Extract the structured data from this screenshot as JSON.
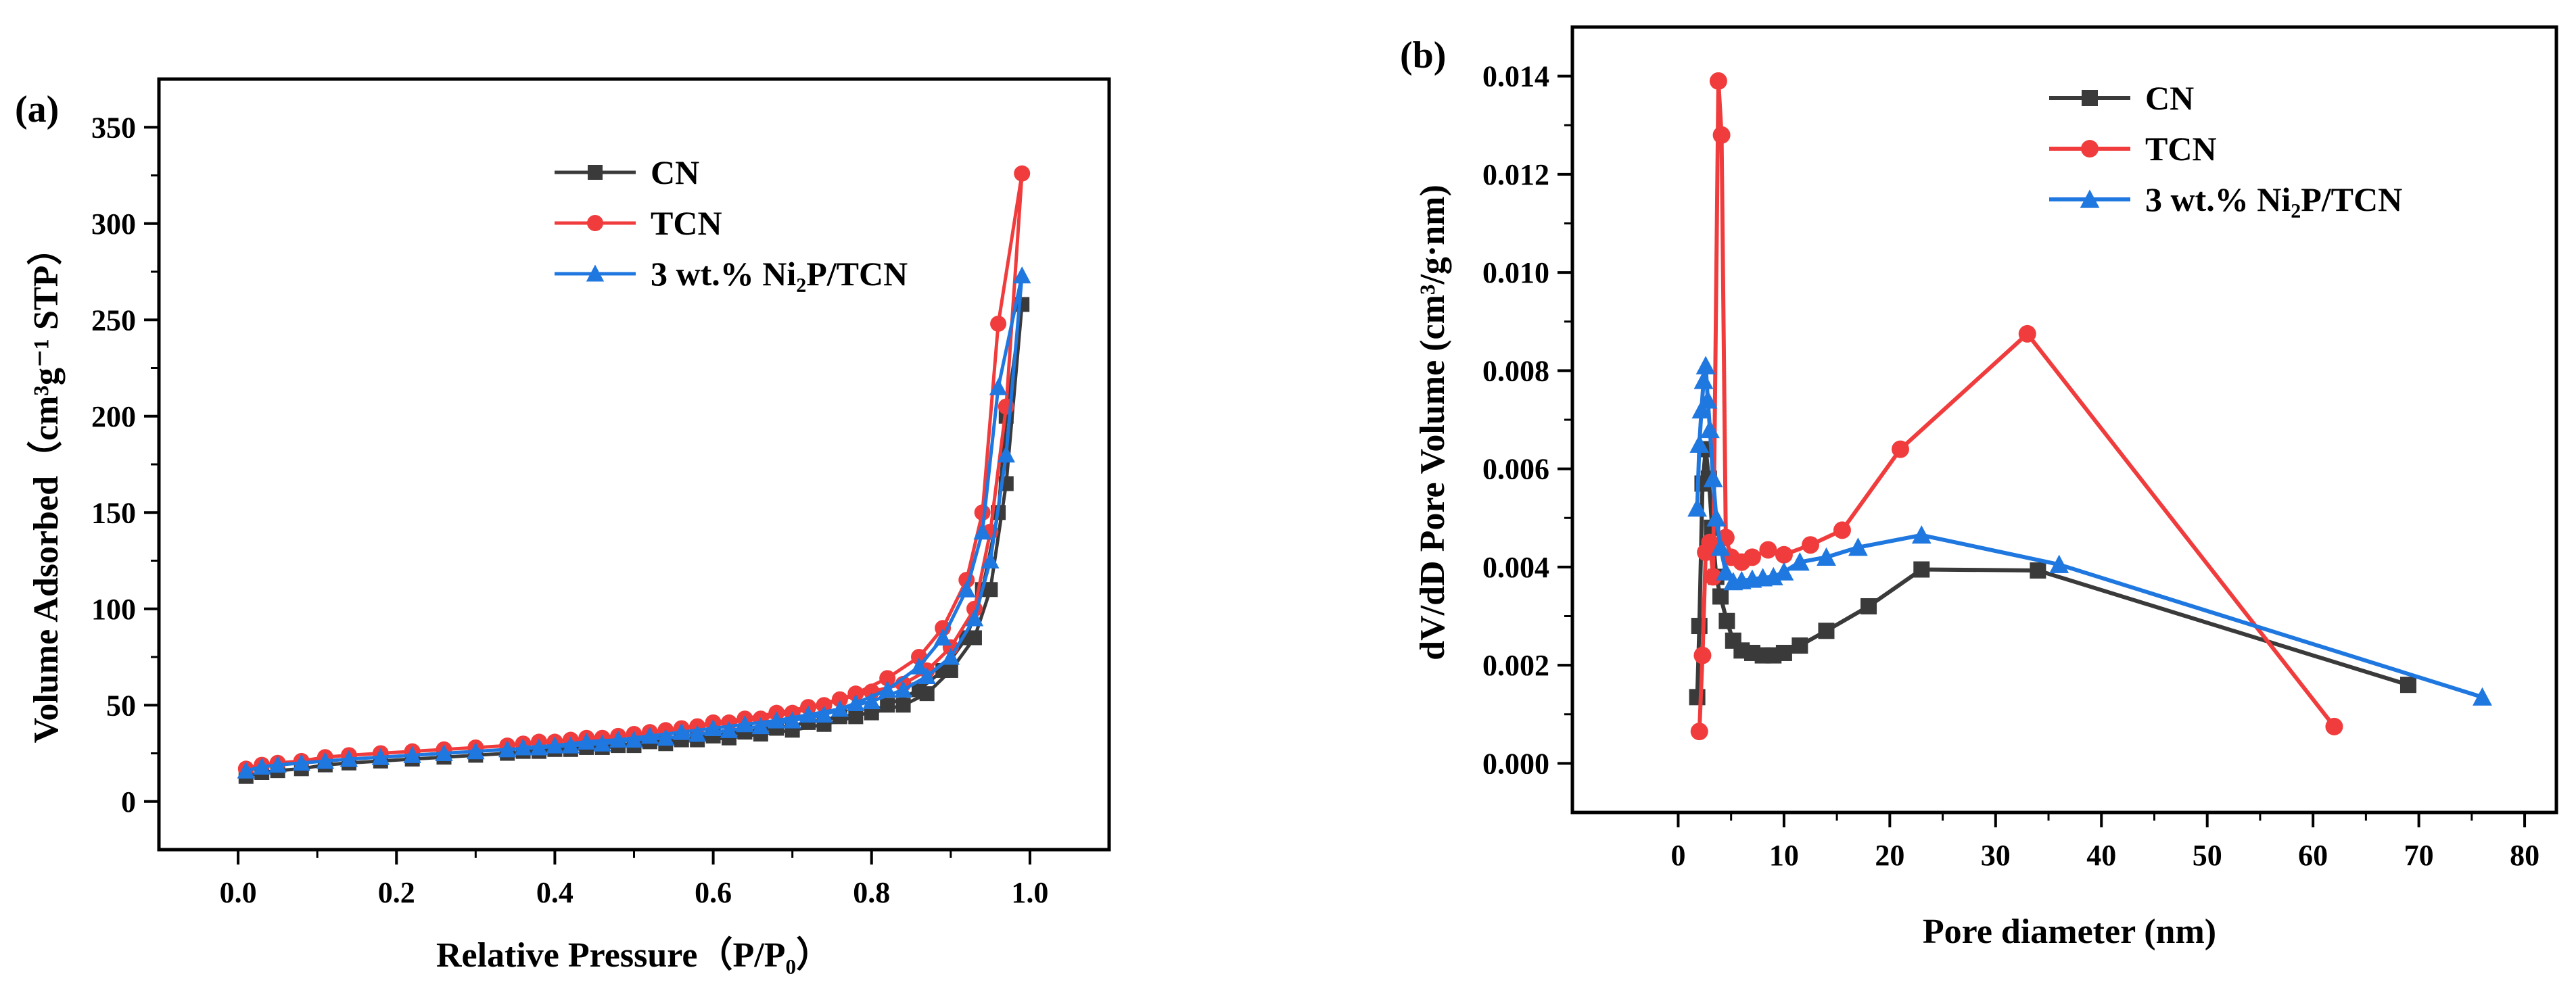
{
  "chart_data": [
    {
      "type": "scatter",
      "panel_label": "(a)",
      "title": "",
      "xlabel": "Relative Pressure（P/P₀）",
      "ylabel": "Volume Adsorbed（cm³g⁻¹ STP）",
      "xlim": [
        -0.1,
        1.1
      ],
      "ylim": [
        -25,
        375
      ],
      "xticks": [
        0.0,
        0.2,
        0.4,
        0.6,
        0.8,
        1.0
      ],
      "xtick_labels": [
        "0.0",
        "0.2",
        "0.4",
        "0.6",
        "0.8",
        "1.0"
      ],
      "yticks": [
        0,
        50,
        100,
        150,
        200,
        250,
        300,
        350
      ],
      "ytick_labels": [
        "0",
        "50",
        "100",
        "150",
        "200",
        "250",
        "300",
        "350"
      ],
      "legend_position": "top-right",
      "series": [
        {
          "name": "CN",
          "color": "#3a3a3a",
          "marker": "square",
          "points": [
            [
              0.01,
              13
            ],
            [
              0.03,
              15
            ],
            [
              0.05,
              16
            ],
            [
              0.08,
              17
            ],
            [
              0.11,
              19
            ],
            [
              0.14,
              20
            ],
            [
              0.18,
              21
            ],
            [
              0.22,
              22
            ],
            [
              0.26,
              23
            ],
            [
              0.3,
              24
            ],
            [
              0.34,
              25
            ],
            [
              0.38,
              26
            ],
            [
              0.42,
              27
            ],
            [
              0.46,
              28
            ],
            [
              0.5,
              29
            ],
            [
              0.54,
              30
            ],
            [
              0.58,
              32
            ],
            [
              0.62,
              33
            ],
            [
              0.66,
              35
            ],
            [
              0.7,
              37
            ],
            [
              0.74,
              40
            ],
            [
              0.78,
              44
            ],
            [
              0.82,
              50
            ],
            [
              0.86,
              58
            ],
            [
              0.89,
              68
            ],
            [
              0.92,
              85
            ],
            [
              0.94,
              110
            ],
            [
              0.96,
              150
            ],
            [
              0.97,
              200
            ],
            [
              0.99,
              258
            ],
            [
              0.97,
              165
            ],
            [
              0.95,
              110
            ],
            [
              0.93,
              85
            ],
            [
              0.9,
              68
            ],
            [
              0.87,
              56
            ],
            [
              0.84,
              50
            ],
            [
              0.8,
              46
            ],
            [
              0.76,
              44
            ],
            [
              0.72,
              41
            ],
            [
              0.68,
              38
            ],
            [
              0.64,
              36
            ],
            [
              0.6,
              34
            ],
            [
              0.56,
              32
            ],
            [
              0.52,
              31
            ],
            [
              0.48,
              29
            ],
            [
              0.44,
              28
            ],
            [
              0.4,
              27
            ],
            [
              0.36,
              26
            ]
          ]
        },
        {
          "name": "TCN",
          "color": "#f03c3c",
          "marker": "circle",
          "points": [
            [
              0.01,
              17
            ],
            [
              0.03,
              19
            ],
            [
              0.05,
              20
            ],
            [
              0.08,
              21
            ],
            [
              0.11,
              23
            ],
            [
              0.14,
              24
            ],
            [
              0.18,
              25
            ],
            [
              0.22,
              26
            ],
            [
              0.26,
              27
            ],
            [
              0.3,
              28
            ],
            [
              0.34,
              29
            ],
            [
              0.38,
              31
            ],
            [
              0.42,
              32
            ],
            [
              0.46,
              33
            ],
            [
              0.5,
              35
            ],
            [
              0.54,
              37
            ],
            [
              0.58,
              39
            ],
            [
              0.62,
              41
            ],
            [
              0.66,
              43
            ],
            [
              0.7,
              46
            ],
            [
              0.74,
              50
            ],
            [
              0.78,
              56
            ],
            [
              0.82,
              64
            ],
            [
              0.86,
              75
            ],
            [
              0.89,
              90
            ],
            [
              0.92,
              115
            ],
            [
              0.94,
              150
            ],
            [
              0.96,
              248
            ],
            [
              0.99,
              326
            ],
            [
              0.97,
              205
            ],
            [
              0.95,
              140
            ],
            [
              0.93,
              100
            ],
            [
              0.9,
              80
            ],
            [
              0.87,
              68
            ],
            [
              0.84,
              61
            ],
            [
              0.8,
              57
            ],
            [
              0.76,
              53
            ],
            [
              0.72,
              49
            ],
            [
              0.68,
              46
            ],
            [
              0.64,
              43
            ],
            [
              0.6,
              41
            ],
            [
              0.56,
              38
            ],
            [
              0.52,
              36
            ],
            [
              0.48,
              34
            ],
            [
              0.44,
              33
            ],
            [
              0.4,
              31
            ],
            [
              0.36,
              30
            ]
          ]
        },
        {
          "name": "3 wt.% Ni₂P/TCN",
          "color": "#1f77e0",
          "marker": "triangle",
          "points": [
            [
              0.01,
              16
            ],
            [
              0.03,
              18
            ],
            [
              0.05,
              19
            ],
            [
              0.08,
              20
            ],
            [
              0.11,
              21
            ],
            [
              0.14,
              22
            ],
            [
              0.18,
              23
            ],
            [
              0.22,
              24
            ],
            [
              0.26,
              25
            ],
            [
              0.3,
              26
            ],
            [
              0.34,
              27
            ],
            [
              0.38,
              28
            ],
            [
              0.42,
              29
            ],
            [
              0.46,
              30
            ],
            [
              0.5,
              32
            ],
            [
              0.54,
              33
            ],
            [
              0.58,
              35
            ],
            [
              0.62,
              37
            ],
            [
              0.66,
              39
            ],
            [
              0.7,
              42
            ],
            [
              0.74,
              45
            ],
            [
              0.78,
              51
            ],
            [
              0.82,
              58
            ],
            [
              0.86,
              70
            ],
            [
              0.89,
              85
            ],
            [
              0.92,
              110
            ],
            [
              0.94,
              140
            ],
            [
              0.96,
              215
            ],
            [
              0.99,
              273
            ],
            [
              0.97,
              180
            ],
            [
              0.95,
              125
            ],
            [
              0.93,
              95
            ],
            [
              0.9,
              75
            ],
            [
              0.87,
              65
            ],
            [
              0.84,
              58
            ],
            [
              0.8,
              52
            ],
            [
              0.76,
              48
            ],
            [
              0.72,
              45
            ],
            [
              0.68,
              42
            ],
            [
              0.64,
              40
            ],
            [
              0.6,
              38
            ],
            [
              0.56,
              36
            ],
            [
              0.52,
              34
            ],
            [
              0.48,
              32
            ],
            [
              0.44,
              31
            ],
            [
              0.4,
              29
            ],
            [
              0.36,
              28
            ]
          ]
        }
      ]
    },
    {
      "type": "line",
      "panel_label": "(b)",
      "title": "",
      "xlabel": "Pore diameter (nm)",
      "ylabel": "dV/dD Pore Volume (cm³/g·nm)",
      "xlim": [
        -10,
        83
      ],
      "ylim": [
        -0.001,
        0.015
      ],
      "xticks": [
        0,
        10,
        20,
        30,
        40,
        50,
        60,
        70,
        80
      ],
      "xtick_labels": [
        "0",
        "10",
        "20",
        "30",
        "40",
        "50",
        "60",
        "70",
        "80"
      ],
      "yticks": [
        0.0,
        0.002,
        0.004,
        0.006,
        0.008,
        0.01,
        0.012,
        0.014
      ],
      "ytick_labels": [
        "0.000",
        "0.002",
        "0.004",
        "0.006",
        "0.008",
        "0.010",
        "0.012",
        "0.014"
      ],
      "legend_position": "top-right",
      "series": [
        {
          "name": "CN",
          "color": "#3a3a3a",
          "marker": "square",
          "points": [
            [
              1.8,
              0.00135
            ],
            [
              2.0,
              0.0028
            ],
            [
              2.3,
              0.0057
            ],
            [
              2.6,
              0.0064
            ],
            [
              2.9,
              0.0058
            ],
            [
              3.2,
              0.0048
            ],
            [
              3.6,
              0.0038
            ],
            [
              4.0,
              0.0034
            ],
            [
              4.6,
              0.0029
            ],
            [
              5.2,
              0.0025
            ],
            [
              6.0,
              0.0023
            ],
            [
              7.0,
              0.00225
            ],
            [
              8.0,
              0.0022
            ],
            [
              9.0,
              0.0022
            ],
            [
              10.0,
              0.00225
            ],
            [
              11.5,
              0.0024
            ],
            [
              14.0,
              0.0027
            ],
            [
              18.0,
              0.0032
            ],
            [
              23.0,
              0.00395
            ],
            [
              34.0,
              0.00393
            ],
            [
              69.0,
              0.0016
            ]
          ]
        },
        {
          "name": "TCN",
          "color": "#f03c3c",
          "marker": "circle",
          "points": [
            [
              2.0,
              0.00065
            ],
            [
              2.3,
              0.0022
            ],
            [
              2.6,
              0.0043
            ],
            [
              3.0,
              0.0045
            ],
            [
              3.3,
              0.0038
            ],
            [
              3.8,
              0.0139
            ],
            [
              4.1,
              0.0128
            ],
            [
              4.5,
              0.0046
            ],
            [
              5.0,
              0.0042
            ],
            [
              6.0,
              0.0041
            ],
            [
              7.0,
              0.0042
            ],
            [
              8.5,
              0.00435
            ],
            [
              10.0,
              0.00425
            ],
            [
              12.5,
              0.00445
            ],
            [
              15.5,
              0.00475
            ],
            [
              21.0,
              0.0064
            ],
            [
              33.0,
              0.00875
            ],
            [
              62.0,
              0.00075
            ]
          ]
        },
        {
          "name": "3 wt.% Ni₂P/TCN",
          "color": "#1f77e0",
          "marker": "triangle",
          "points": [
            [
              1.8,
              0.0052
            ],
            [
              2.0,
              0.0065
            ],
            [
              2.2,
              0.0072
            ],
            [
              2.4,
              0.0078
            ],
            [
              2.6,
              0.0081
            ],
            [
              2.8,
              0.0074
            ],
            [
              3.0,
              0.0068
            ],
            [
              3.3,
              0.0058
            ],
            [
              3.6,
              0.005
            ],
            [
              4.0,
              0.0044
            ],
            [
              4.5,
              0.0039
            ],
            [
              5.2,
              0.0037
            ],
            [
              6.0,
              0.00372
            ],
            [
              7.0,
              0.00375
            ],
            [
              8.0,
              0.00378
            ],
            [
              9.0,
              0.0038
            ],
            [
              10.0,
              0.0039
            ],
            [
              11.5,
              0.0041
            ],
            [
              14.0,
              0.0042
            ],
            [
              17.0,
              0.0044
            ],
            [
              23.0,
              0.00465
            ],
            [
              36.0,
              0.00405
            ],
            [
              76.0,
              0.00135
            ]
          ]
        }
      ]
    }
  ]
}
